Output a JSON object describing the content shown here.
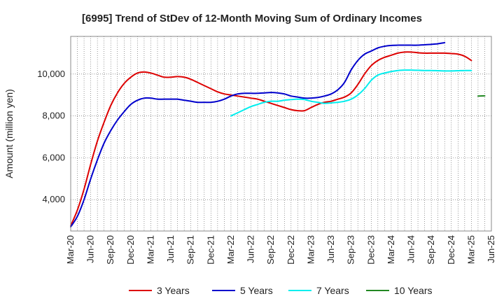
{
  "chart_data": {
    "type": "line",
    "title": "[6995]  Trend of StDev of 12-Month Moving Sum of Ordinary Incomes",
    "xlabel": "",
    "ylabel": "Amount (million yen)",
    "ylim": [
      2500,
      11800
    ],
    "yticks": [
      4000,
      6000,
      8000,
      10000
    ],
    "ytick_labels": [
      "4,000",
      "6,000",
      "8,000",
      "10,000"
    ],
    "x_labels": [
      "Mar-20",
      "Jun-20",
      "Sep-20",
      "Dec-20",
      "Mar-21",
      "Jun-21",
      "Sep-21",
      "Dec-21",
      "Mar-22",
      "Jun-22",
      "Sep-22",
      "Dec-22",
      "Mar-23",
      "Jun-23",
      "Sep-23",
      "Dec-23",
      "Mar-24",
      "Jun-24",
      "Sep-24",
      "Dec-24",
      "Mar-25",
      "Jun-25"
    ],
    "x_start": "Mar-20",
    "x_months": 63,
    "grid": true,
    "legend_position": "bottom",
    "series": [
      {
        "name": "3 Years",
        "color": "#dd0000",
        "start_month": 0,
        "values": [
          2750,
          3500,
          4500,
          5700,
          6800,
          7700,
          8500,
          9100,
          9550,
          9850,
          10050,
          10100,
          10050,
          9950,
          9850,
          9850,
          9880,
          9850,
          9750,
          9600,
          9450,
          9300,
          9150,
          9050,
          9000,
          8950,
          8900,
          8850,
          8800,
          8700,
          8600,
          8500,
          8400,
          8300,
          8250,
          8250,
          8400,
          8550,
          8650,
          8700,
          8800,
          8900,
          9100,
          9500,
          10000,
          10400,
          10650,
          10800,
          10900,
          11000,
          11050,
          11050,
          11020,
          11000,
          11000,
          11000,
          11000,
          10980,
          10950,
          10850,
          10650
        ]
      },
      {
        "name": "5 Years",
        "color": "#0000cc",
        "start_month": 0,
        "values": [
          2700,
          3200,
          4000,
          5000,
          5900,
          6700,
          7300,
          7800,
          8200,
          8550,
          8750,
          8850,
          8850,
          8800,
          8800,
          8800,
          8800,
          8750,
          8700,
          8650,
          8650,
          8650,
          8700,
          8800,
          8950,
          9050,
          9080,
          9080,
          9080,
          9100,
          9120,
          9100,
          9050,
          8950,
          8900,
          8850,
          8850,
          8880,
          8950,
          9050,
          9250,
          9600,
          10200,
          10650,
          10950,
          11100,
          11250,
          11330,
          11370,
          11380,
          11380,
          11380,
          11380,
          11400,
          11420,
          11450,
          11500
        ]
      },
      {
        "name": "7 Years",
        "color": "#00eeee",
        "start_month": 24,
        "values": [
          8000,
          8150,
          8300,
          8450,
          8550,
          8650,
          8700,
          8700,
          8750,
          8780,
          8800,
          8780,
          8700,
          8650,
          8600,
          8620,
          8650,
          8700,
          8800,
          9000,
          9300,
          9700,
          9950,
          10050,
          10120,
          10170,
          10190,
          10190,
          10180,
          10170,
          10170,
          10160,
          10150,
          10150,
          10160,
          10170,
          10170
        ]
      },
      {
        "name": "10 Years",
        "color": "#228822",
        "start_month": 61,
        "values": [
          8950,
          8960
        ]
      }
    ]
  }
}
